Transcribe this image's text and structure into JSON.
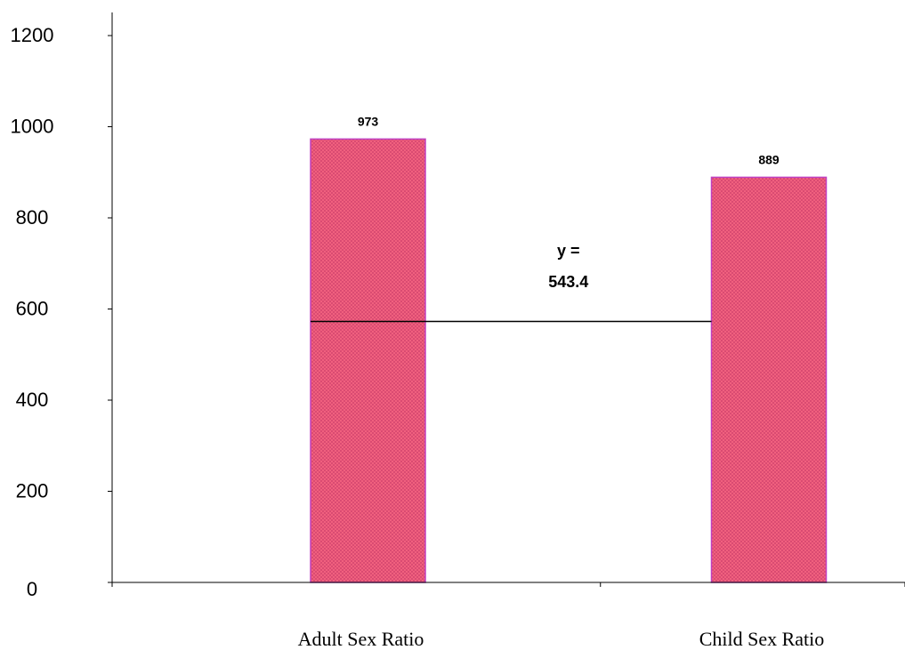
{
  "chart_data": {
    "type": "bar",
    "categories": [
      "Adult Sex Ratio",
      "Child Sex Ratio"
    ],
    "values": [
      973,
      889
    ],
    "data_labels": [
      "973",
      "889"
    ],
    "ylim": [
      0,
      1200
    ],
    "yticks": [
      0,
      200,
      400,
      600,
      800,
      1000,
      1200
    ],
    "ytick_labels": [
      "0",
      "200",
      "400",
      "600",
      "800",
      "1000",
      "1200"
    ],
    "grid": false,
    "legend": "none",
    "bar_color": "#f0607e",
    "bar_pattern_color": "#c83a68",
    "bar_border_color": "#c040c0",
    "reference_line": {
      "y": 543.4,
      "label_line1": "y =",
      "label_line2": "543.4",
      "color": "#000000"
    },
    "title": "",
    "xlabel": "",
    "ylabel": ""
  }
}
